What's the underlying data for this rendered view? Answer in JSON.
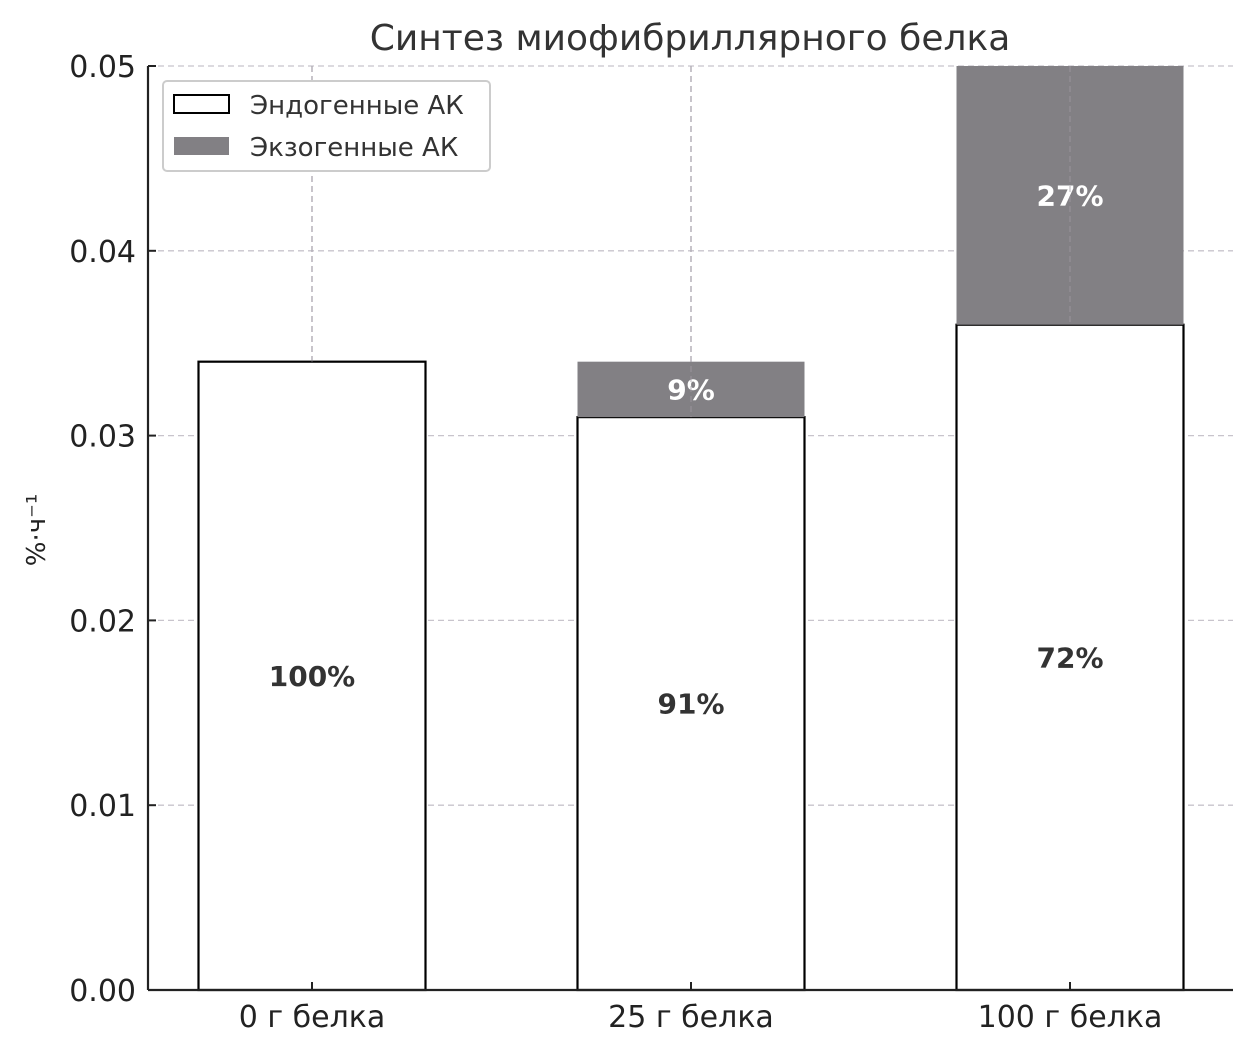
{
  "chart_data": {
    "type": "bar",
    "stacked": true,
    "title": "Синтез миофибриллярного белка",
    "xlabel": "",
    "ylabel": "%·ч⁻¹",
    "ylim": [
      0,
      0.05
    ],
    "yticks": [
      "0.00",
      "0.01",
      "0.02",
      "0.03",
      "0.04",
      "0.05"
    ],
    "categories": [
      "0 г белка",
      "25 г белка",
      "100 г белка"
    ],
    "grid": true,
    "legend_position": "top-left",
    "series": [
      {
        "name": "Эндогенные АК",
        "values": [
          0.034,
          0.031,
          0.036
        ],
        "labels": [
          "100%",
          "91%",
          "72%"
        ],
        "color": "#ffffff",
        "edge": "#000000"
      },
      {
        "name": "Экзогенные АК",
        "values": [
          0,
          0.003,
          0.014
        ],
        "labels": [
          "",
          "9%",
          "27%"
        ],
        "color": "#828084"
      }
    ]
  }
}
